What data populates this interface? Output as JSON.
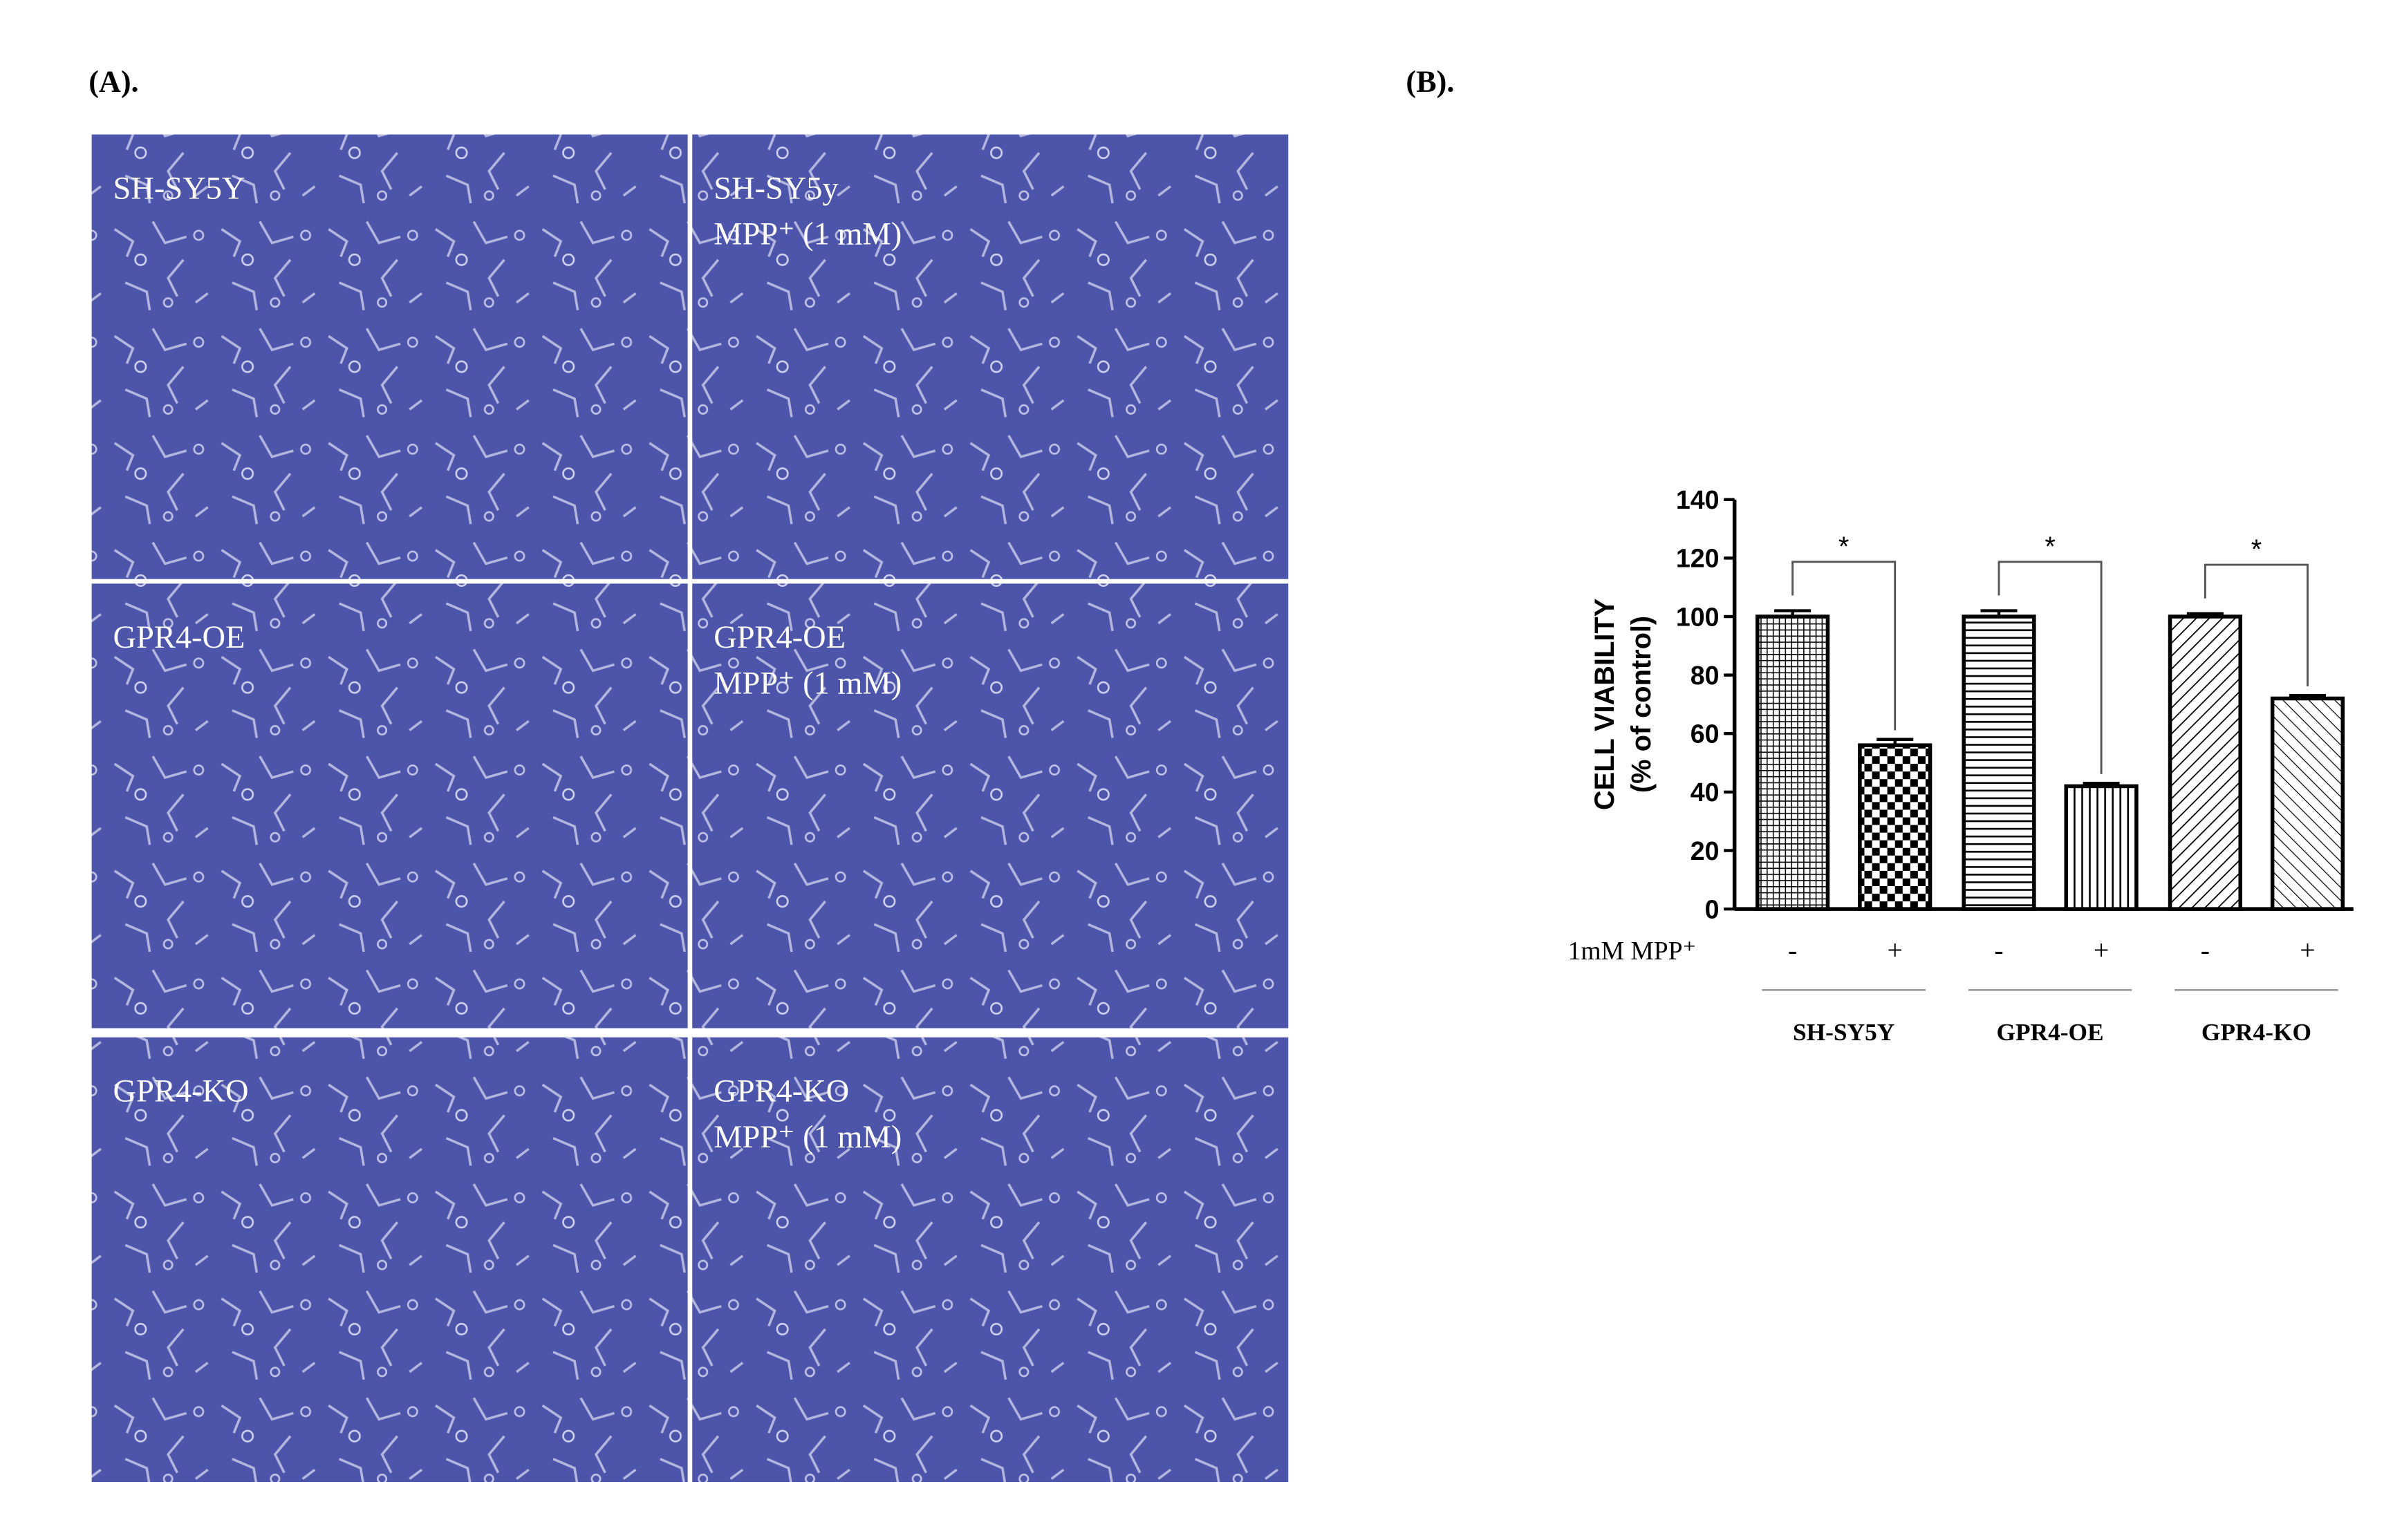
{
  "panel_a": {
    "label": "(A).",
    "images": [
      [
        "SH-SY5Y"
      ],
      [
        "SH-SY5y",
        "MPP⁺ (1 mM)"
      ],
      [
        "GPR4-OE"
      ],
      [
        "GPR4-OE",
        "MPP⁺ (1 mM)"
      ],
      [
        "GPR4-KO"
      ],
      [
        "GPR4-KO",
        "MPP⁺ (1 mM)"
      ]
    ]
  },
  "panel_b": {
    "label": "(B)."
  },
  "chart_data": {
    "type": "bar",
    "ylabel": [
      "CELL VIABILITY",
      "(% of control)"
    ],
    "xlabel": "1mM MPP⁺",
    "categories": [
      "-",
      "+",
      "-",
      "+",
      "-",
      "+"
    ],
    "groups": [
      "SH-SY5Y",
      "GPR4-OE",
      "GPR4-KO"
    ],
    "values": [
      100,
      56,
      100,
      42,
      100,
      72
    ],
    "errors": [
      2,
      2,
      2,
      1,
      1,
      1
    ],
    "significance": [
      "*",
      "*",
      "*"
    ],
    "bar_patterns": [
      "crosshatch",
      "checker",
      "horizontal",
      "vertical",
      "diagonal",
      "diagonal-fine"
    ],
    "color": "#000000",
    "ylim": [
      0,
      140
    ],
    "yticks": [
      0,
      20,
      40,
      60,
      80,
      100,
      120,
      140
    ]
  }
}
